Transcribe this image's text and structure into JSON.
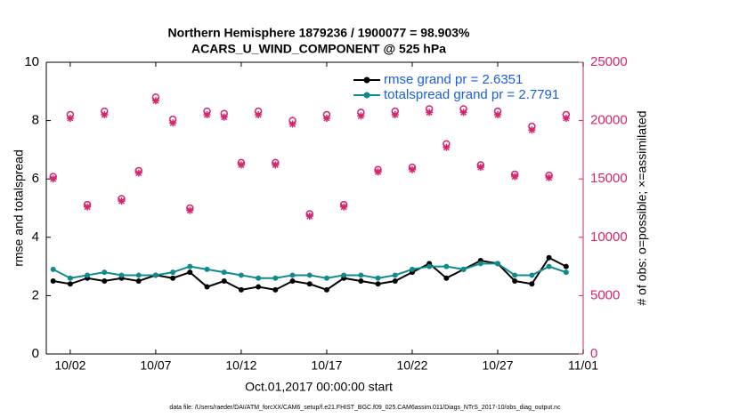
{
  "chart_data": {
    "type": "line",
    "title": "Northern Hemisphere 1879236 / 1900077 = 98.903%",
    "subtitle": "ACARS_U_WIND_COMPONENT @ 525 hPa",
    "ylabel": "rmse and totalspread",
    "y2label": "# of obs: o=possible; ×=assimilated",
    "xlabel": "Oct.01,2017 00:00:00 start",
    "footnote": "data file: /Users/raeder/DAI/ATM_forcXX/CAM6_setup/f.e21.FHIST_BGC.f09_025.CAM6assim.011/Diags_NTrS_2017-10/obs_diag_output.nc",
    "x": [
      0,
      1,
      2,
      3,
      4,
      5,
      6,
      7,
      8,
      9,
      10,
      11,
      12,
      13,
      14,
      15,
      16,
      17,
      18,
      19,
      20,
      21,
      22,
      23,
      24,
      25,
      26,
      27,
      28,
      29,
      30
    ],
    "xlim": [
      -0.4,
      31
    ],
    "xticks": [
      {
        "value": 1,
        "label": "10/02"
      },
      {
        "value": 6,
        "label": "10/07"
      },
      {
        "value": 11,
        "label": "10/12"
      },
      {
        "value": 16,
        "label": "10/17"
      },
      {
        "value": 21,
        "label": "10/22"
      },
      {
        "value": 26,
        "label": "10/27"
      },
      {
        "value": 31,
        "label": "11/01"
      }
    ],
    "ylim": [
      0,
      10
    ],
    "yticks": [
      0,
      2,
      4,
      6,
      8,
      10
    ],
    "y2lim": [
      0,
      25000
    ],
    "y2ticks": [
      0,
      5000,
      10000,
      15000,
      20000,
      25000
    ],
    "y2color": "#d6246e",
    "legend_color": "#1a5fe0",
    "legend": "upper right",
    "series": [
      {
        "name": "rmse grand pr = 2.6351",
        "color": "#000000",
        "marker": "dot",
        "values": [
          2.5,
          2.4,
          2.6,
          2.5,
          2.6,
          2.5,
          2.7,
          2.6,
          2.8,
          2.3,
          2.5,
          2.2,
          2.3,
          2.2,
          2.5,
          2.4,
          2.2,
          2.6,
          2.5,
          2.4,
          2.5,
          2.8,
          3.1,
          2.6,
          2.9,
          3.2,
          3.1,
          2.5,
          2.4,
          3.3,
          3.0
        ]
      },
      {
        "name": "totalspread grand pr = 2.7791",
        "color": "#0f8b8d",
        "marker": "dot",
        "values": [
          2.9,
          2.6,
          2.7,
          2.8,
          2.7,
          2.7,
          2.7,
          2.8,
          3.0,
          2.9,
          2.8,
          2.7,
          2.6,
          2.6,
          2.7,
          2.7,
          2.6,
          2.7,
          2.7,
          2.6,
          2.7,
          2.9,
          3.0,
          3.0,
          2.9,
          3.1,
          3.1,
          2.7,
          2.7,
          3.0,
          2.8
        ]
      },
      {
        "axis": "y2",
        "color": "#d6246e",
        "marker": "o",
        "values": [
          15200,
          20500,
          12800,
          20800,
          13300,
          15700,
          22000,
          20100,
          12500,
          20800,
          20600,
          16400,
          20800,
          16400,
          20000,
          12000,
          20500,
          12800,
          20700,
          15800,
          20800,
          16000,
          21000,
          18000,
          21000,
          16200,
          20800,
          15400,
          19500,
          15300,
          20500
        ]
      },
      {
        "axis": "y2",
        "color": "#d6246e",
        "marker": "*",
        "values": [
          15000,
          20200,
          12600,
          20500,
          13100,
          15500,
          21700,
          19800,
          12300,
          20500,
          20300,
          16200,
          20500,
          16200,
          19700,
          11800,
          20200,
          12600,
          20400,
          15600,
          20500,
          15800,
          20700,
          17700,
          20700,
          16000,
          20500,
          15200,
          19200,
          15100,
          20200
        ]
      }
    ]
  }
}
